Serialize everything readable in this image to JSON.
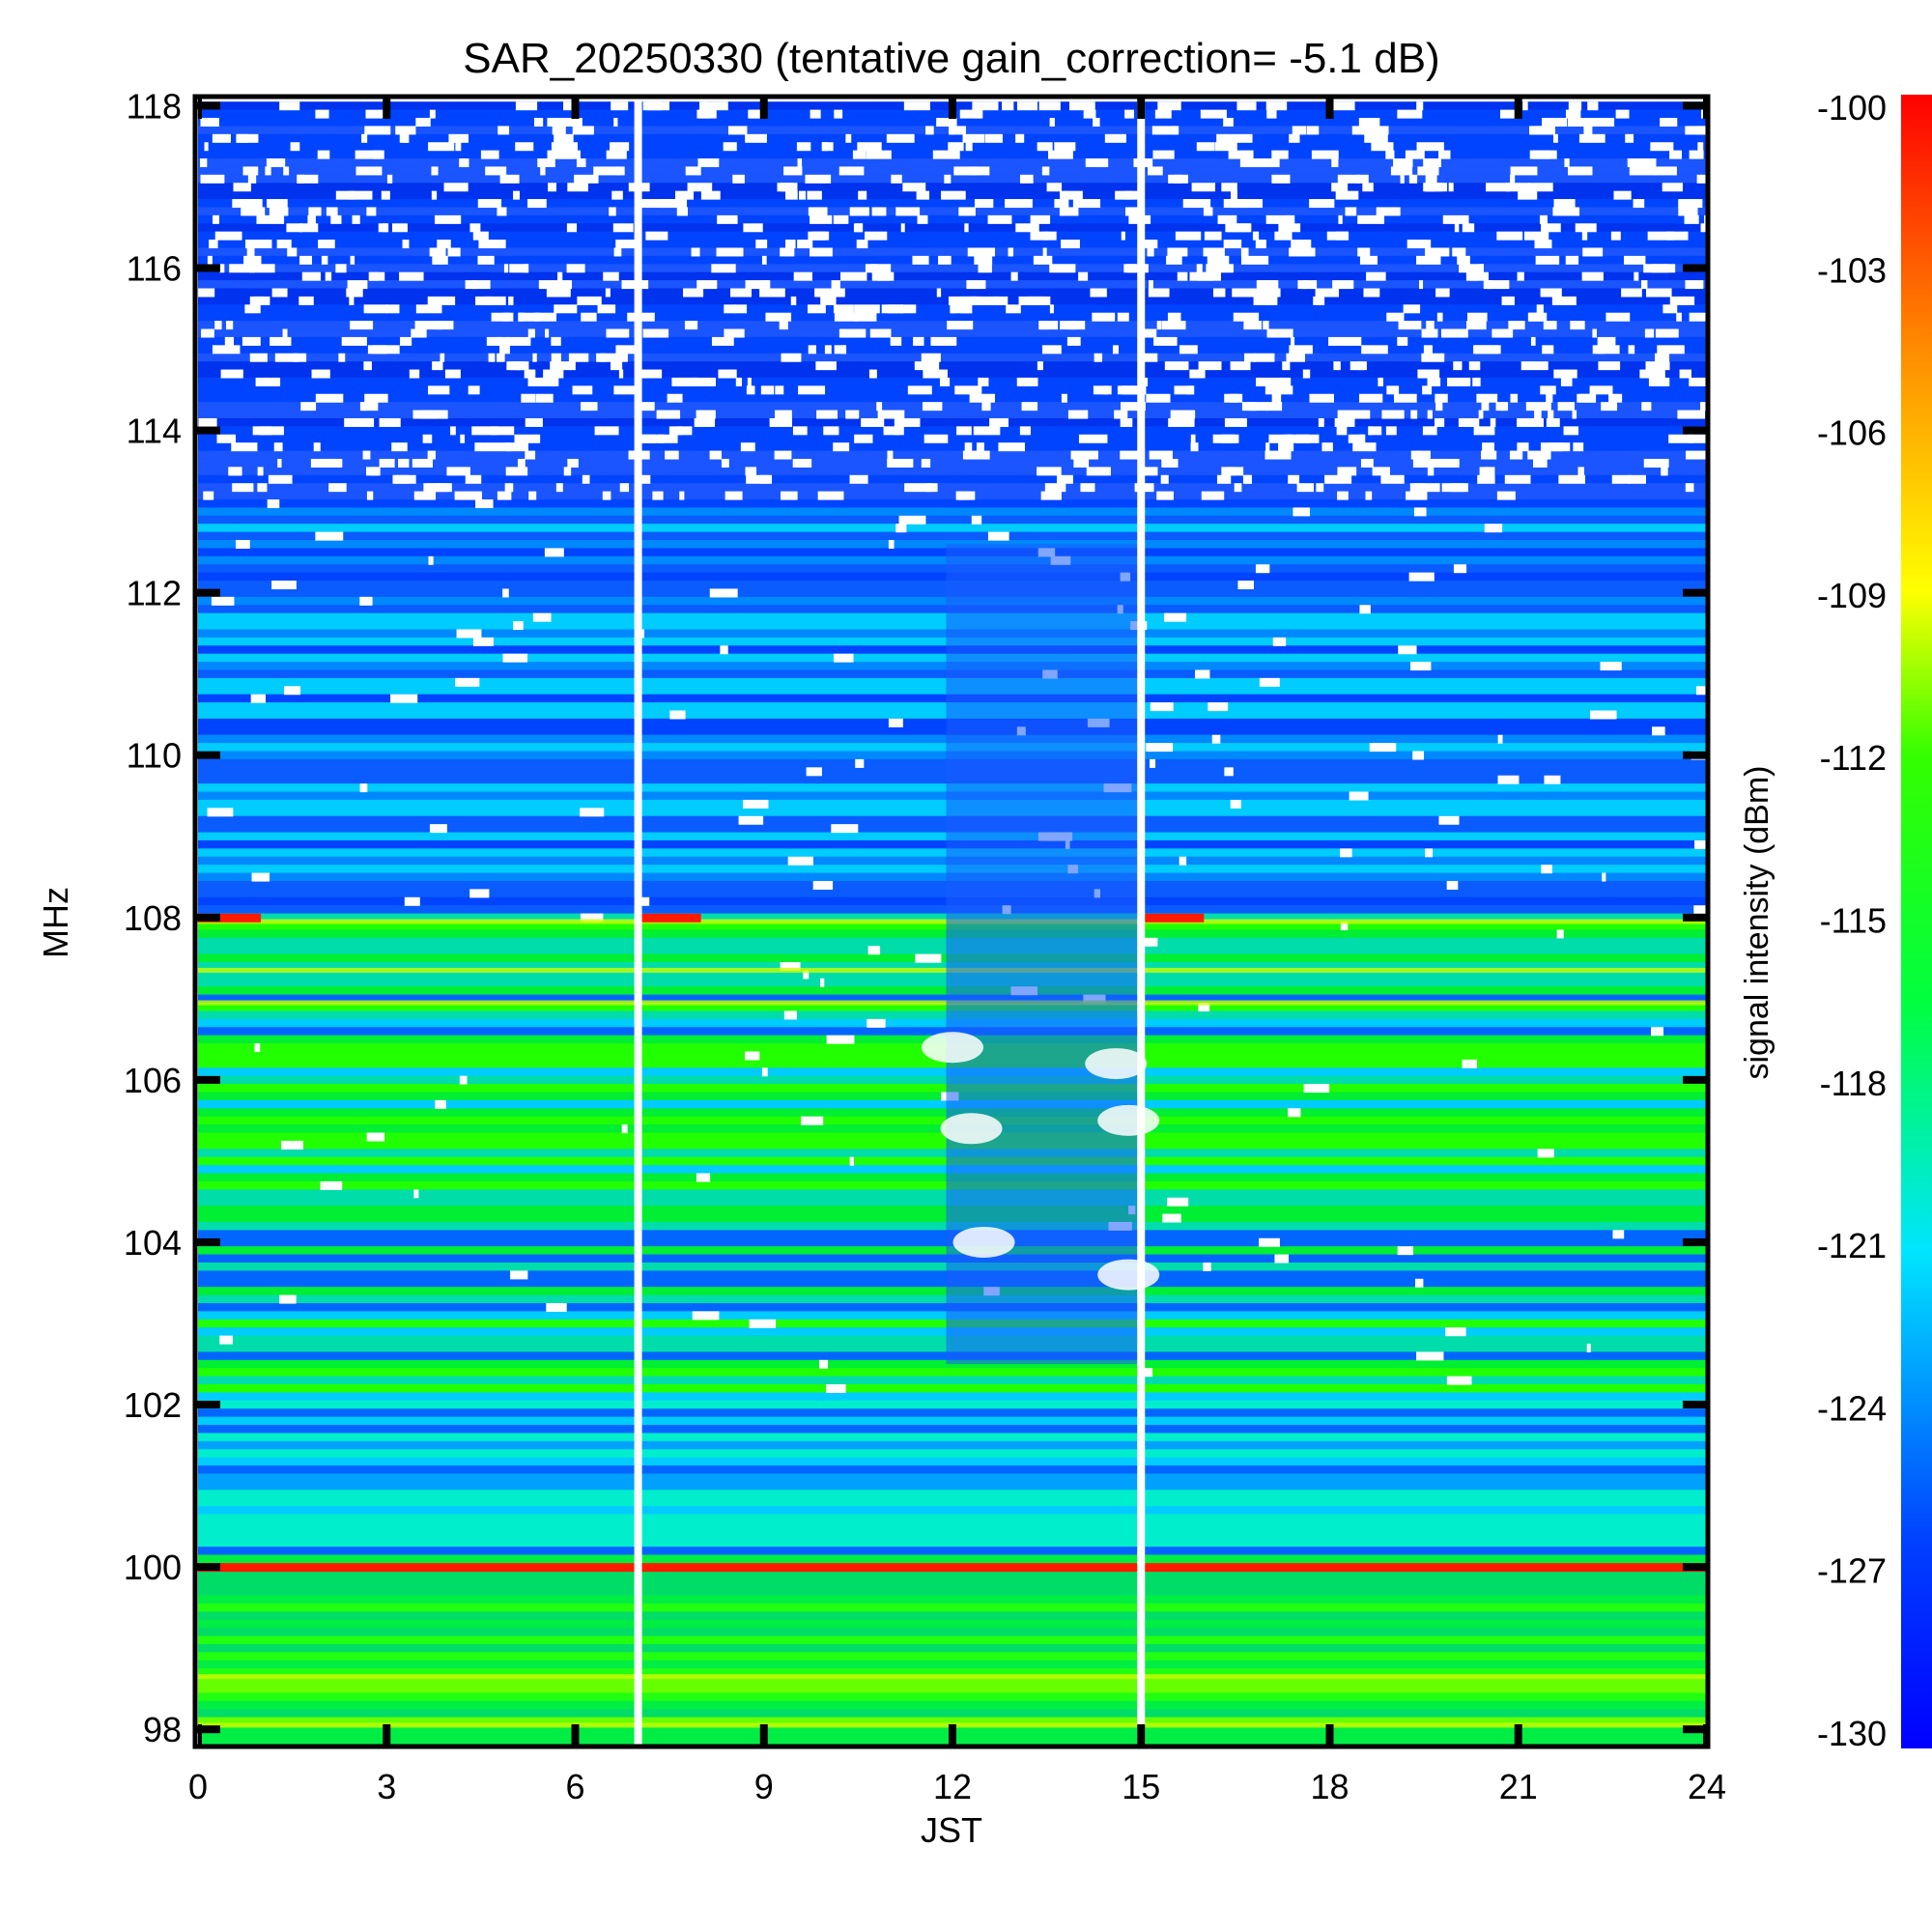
{
  "chart_data": {
    "type": "heatmap",
    "title": "SAR_20250330 (tentative gain_correction= -5.1 dB)",
    "xlabel": "JST",
    "ylabel": "MHz",
    "colorbar_label": "signal intensity (dBm)",
    "xlim": [
      0,
      24
    ],
    "ylim": [
      97.8,
      118.1
    ],
    "x_ticks": [
      "0",
      "3",
      "6",
      "9",
      "12",
      "15",
      "18",
      "21",
      "24"
    ],
    "y_ticks": [
      "98",
      "100",
      "102",
      "104",
      "106",
      "108",
      "110",
      "112",
      "114",
      "116",
      "118"
    ],
    "colorbar_range": [
      -130,
      -100
    ],
    "colorbar_ticks": [
      "-100",
      "-103",
      "-106",
      "-109",
      "-112",
      "-115",
      "-118",
      "-121",
      "-124",
      "-127",
      "-130"
    ],
    "colormap": "jet",
    "data_gaps_jst": [
      7.0,
      15.0
    ],
    "strong_lines_mhz": [
      100.0,
      108.0
    ]
  }
}
